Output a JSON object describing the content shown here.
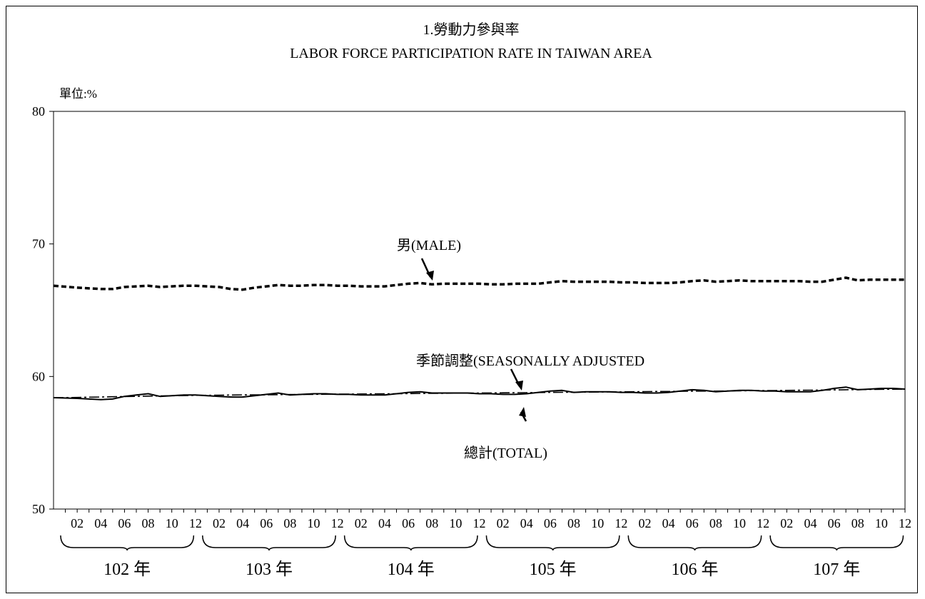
{
  "chart_data": {
    "type": "line",
    "title": "1.勞動力參與率",
    "subtitle": "LABOR FORCE PARTICIPATION RATE IN TAIWAN AREA",
    "unit_label": "單位:%",
    "ylim": [
      50,
      80
    ],
    "yticks": [
      "50",
      "60",
      "70",
      "80"
    ],
    "grid": false,
    "month_ticks": [
      "02",
      "04",
      "06",
      "08",
      "10",
      "12"
    ],
    "year_groups": [
      "102 年",
      "103 年",
      "104 年",
      "105 年",
      "106 年",
      "107 年"
    ],
    "x_months": 72,
    "series": [
      {
        "name": "男(MALE)",
        "style": "dashed",
        "values": [
          66.85,
          66.7,
          66.65,
          66.6,
          66.6,
          66.75,
          66.8,
          66.85,
          66.75,
          66.8,
          66.85,
          66.85,
          66.8,
          66.75,
          66.6,
          66.55,
          66.7,
          66.8,
          66.9,
          66.85,
          66.85,
          66.9,
          66.9,
          66.85,
          66.85,
          66.8,
          66.8,
          66.8,
          66.9,
          67.0,
          67.05,
          66.95,
          67.0,
          67.0,
          67.0,
          67.0,
          66.95,
          66.95,
          67.0,
          67.0,
          67.0,
          67.1,
          67.2,
          67.15,
          67.15,
          67.15,
          67.15,
          67.1,
          67.1,
          67.05,
          67.05,
          67.05,
          67.1,
          67.2,
          67.25,
          67.15,
          67.2,
          67.25,
          67.2,
          67.2,
          67.2,
          67.2,
          67.2,
          67.15,
          67.15,
          67.3,
          67.45,
          67.25,
          67.3,
          67.3,
          67.3,
          67.3
        ]
      },
      {
        "name": "總計(TOTAL)",
        "style": "solid",
        "values": [
          58.4,
          58.35,
          58.3,
          58.25,
          58.3,
          58.5,
          58.6,
          58.7,
          58.5,
          58.55,
          58.6,
          58.6,
          58.55,
          58.5,
          58.45,
          58.45,
          58.55,
          58.65,
          58.75,
          58.6,
          58.65,
          58.7,
          58.7,
          58.65,
          58.65,
          58.6,
          58.6,
          58.6,
          58.7,
          58.8,
          58.85,
          58.75,
          58.75,
          58.75,
          58.75,
          58.7,
          58.7,
          58.65,
          58.65,
          58.7,
          58.8,
          58.9,
          58.95,
          58.8,
          58.85,
          58.85,
          58.85,
          58.8,
          58.8,
          58.75,
          58.75,
          58.8,
          58.9,
          59.0,
          58.95,
          58.85,
          58.9,
          58.95,
          58.95,
          58.9,
          58.9,
          58.85,
          58.85,
          58.85,
          58.95,
          59.1,
          59.2,
          59.0,
          59.05,
          59.1,
          59.1,
          59.05
        ]
      },
      {
        "name": "季節調整(SEASONALLY ADJUSTED",
        "style": "dashdot",
        "values": [
          58.4,
          58.42,
          58.44,
          58.45,
          58.47,
          58.49,
          58.5,
          58.52,
          58.53,
          58.55,
          58.56,
          58.58,
          58.58,
          58.59,
          58.6,
          58.61,
          58.61,
          58.62,
          58.63,
          58.64,
          58.65,
          58.65,
          58.66,
          58.67,
          58.67,
          58.68,
          58.69,
          58.7,
          58.7,
          58.71,
          58.72,
          58.73,
          58.73,
          58.74,
          58.75,
          58.75,
          58.76,
          58.77,
          58.78,
          58.78,
          58.79,
          58.8,
          58.81,
          58.81,
          58.82,
          58.83,
          58.84,
          58.84,
          58.85,
          58.86,
          58.87,
          58.87,
          58.88,
          58.89,
          58.9,
          58.9,
          58.91,
          58.92,
          58.93,
          58.94,
          58.94,
          58.95,
          58.96,
          58.97,
          58.98,
          58.99,
          59.0,
          59.01,
          59.02,
          59.03,
          59.04,
          59.05
        ]
      }
    ],
    "annotations": {
      "male": "男(MALE)",
      "seasonal": "季節調整(SEASONALLY ADJUSTED",
      "total": "總計(TOTAL)"
    }
  }
}
